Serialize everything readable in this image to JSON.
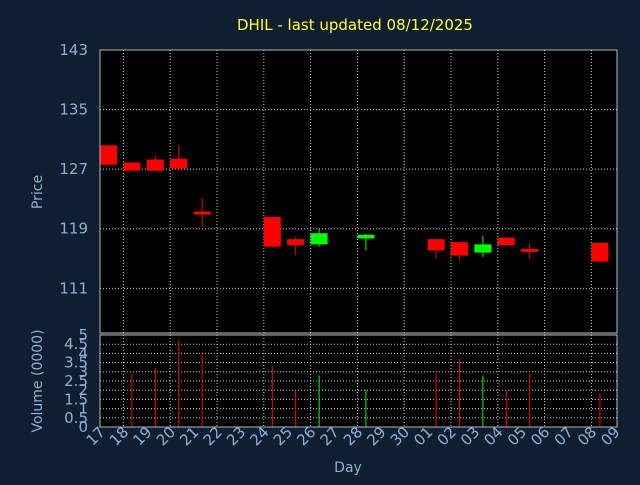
{
  "chart_data": {
    "type": "candlestick",
    "title": "DHIL - last updated 08/12/2025",
    "xlabel": "Day",
    "price_panel": {
      "ylabel": "Price",
      "ylim": [
        105,
        143
      ],
      "yticks": [
        143,
        135,
        127,
        119,
        111
      ]
    },
    "volume_panel": {
      "ylabel": "Volume (0000)",
      "ylim": [
        0,
        5
      ],
      "ytick_labels": [
        "0",
        "0.5",
        "1",
        "1.5",
        "2",
        "2.5",
        "3",
        "3.5",
        "4",
        "4.5",
        "5"
      ]
    },
    "x_ticks": [
      "17",
      "18",
      "19",
      "20",
      "21",
      "22",
      "23",
      "24",
      "25",
      "26",
      "27",
      "28",
      "29",
      "30",
      "01",
      "02",
      "03",
      "04",
      "05",
      "06",
      "07",
      "08",
      "09"
    ],
    "colors": {
      "up": "#00ff00",
      "down": "#ff0000",
      "title": "#ffff33",
      "axis_text": "#8ab0d6",
      "background": "#0f1f31",
      "plot": "#000000"
    },
    "candles": [
      {
        "day": "17",
        "open": 130.2,
        "high": 130.2,
        "low": 127.6,
        "close": 127.6,
        "volume": 0.0
      },
      {
        "day": "18",
        "open": 127.9,
        "high": 127.9,
        "low": 126.8,
        "close": 126.8,
        "volume": 2.9
      },
      {
        "day": "19",
        "open": 128.3,
        "high": 128.8,
        "low": 126.7,
        "close": 126.8,
        "volume": 3.2
      },
      {
        "day": "20",
        "open": 128.4,
        "high": 130.2,
        "low": 127.0,
        "close": 127.1,
        "volume": 4.7
      },
      {
        "day": "21",
        "open": 121.3,
        "high": 123.1,
        "low": 119.2,
        "close": 120.9,
        "volume": 4.0
      },
      {
        "day": "24",
        "open": 120.6,
        "high": 120.6,
        "low": 116.4,
        "close": 116.6,
        "volume": 3.3
      },
      {
        "day": "25",
        "open": 117.6,
        "high": 117.9,
        "low": 115.5,
        "close": 116.8,
        "volume": 2.0
      },
      {
        "day": "26",
        "open": 116.9,
        "high": 119.0,
        "low": 116.6,
        "close": 118.4,
        "volume": 2.8
      },
      {
        "day": "28",
        "open": 117.7,
        "high": 118.3,
        "low": 116.1,
        "close": 118.2,
        "volume": 2.0
      },
      {
        "day": "01",
        "open": 117.6,
        "high": 117.6,
        "low": 115.0,
        "close": 116.1,
        "volume": 2.9
      },
      {
        "day": "02",
        "open": 117.2,
        "high": 117.2,
        "low": 114.8,
        "close": 115.4,
        "volume": 3.7
      },
      {
        "day": "03",
        "open": 115.8,
        "high": 118.1,
        "low": 115.2,
        "close": 116.9,
        "volume": 2.8
      },
      {
        "day": "04",
        "open": 117.8,
        "high": 117.8,
        "low": 116.7,
        "close": 116.8,
        "volume": 2.0
      },
      {
        "day": "05",
        "open": 116.3,
        "high": 117.0,
        "low": 115.0,
        "close": 116.1,
        "volume": 2.9
      },
      {
        "day": "08",
        "open": 117.1,
        "high": 117.1,
        "low": 114.6,
        "close": 114.6,
        "volume": 1.8
      }
    ]
  }
}
